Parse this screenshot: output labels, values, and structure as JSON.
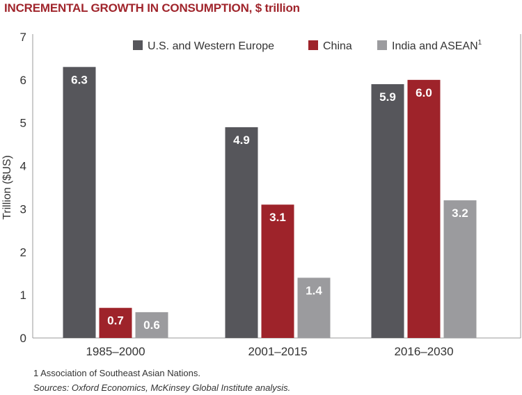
{
  "title": "INCREMENTAL GROWTH IN CONSUMPTION, $ trillion",
  "footnote": "1 Association of Southeast Asian Nations.",
  "sources": "Sources: Oxford Economics, McKinsey Global Institute analysis.",
  "colors": {
    "title": "#a0252c",
    "us_western_europe": "#56565b",
    "china": "#9e232a",
    "india_asean": "#9b9b9e"
  },
  "chart_data": {
    "type": "bar",
    "title": "INCREMENTAL GROWTH IN CONSUMPTION, $ trillion",
    "xlabel": "",
    "ylabel": "Trillion ($US)",
    "ylim": [
      0,
      7
    ],
    "yticks": [
      0,
      1,
      2,
      3,
      4,
      5,
      6,
      7
    ],
    "categories": [
      "1985–2000",
      "2001–2015",
      "2016–2030"
    ],
    "series": [
      {
        "name": "U.S. and Western Europe",
        "values": [
          6.3,
          4.9,
          5.9
        ],
        "labels": [
          "6.3",
          "4.9",
          "5.9"
        ],
        "color": "#56565b"
      },
      {
        "name": "China",
        "values": [
          0.7,
          3.1,
          6.0
        ],
        "labels": [
          "0.7",
          "3.1",
          "6.0"
        ],
        "color": "#9e232a"
      },
      {
        "name": "India and ASEAN",
        "name_superscript": "1",
        "values": [
          0.6,
          1.4,
          3.2
        ],
        "labels": [
          "0.6",
          "1.4",
          "3.2"
        ],
        "color": "#9b9b9e"
      }
    ],
    "legend_position": "top-right",
    "grid": false
  }
}
